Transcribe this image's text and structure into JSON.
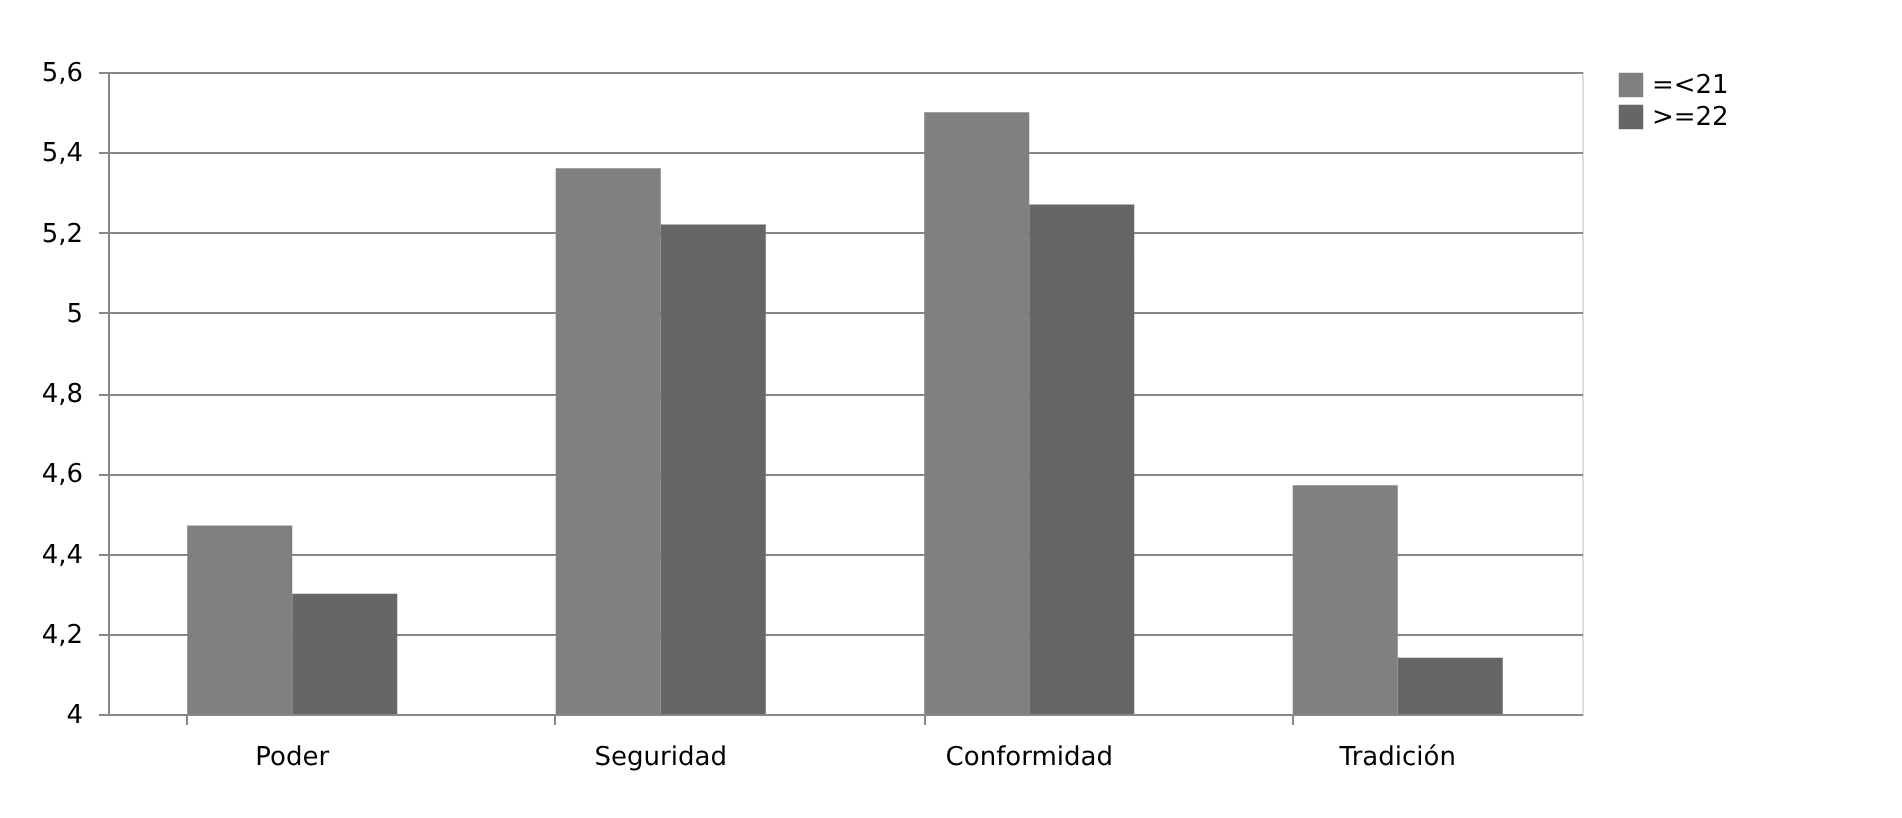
{
  "chart_data": {
    "type": "bar",
    "categories": [
      "Poder",
      "Seguridad",
      "Conformidad",
      "Tradición"
    ],
    "series": [
      {
        "name": "=<21",
        "color": "#808080",
        "values": [
          4.47,
          5.36,
          5.5,
          4.57
        ]
      },
      {
        "name": ">=22",
        "color": "#666666",
        "values": [
          4.3,
          5.22,
          5.27,
          4.14
        ]
      }
    ],
    "ylim": [
      4,
      5.6
    ],
    "yticks": [
      4,
      {
        "value": 4.2,
        "label": "4,2"
      },
      {
        "value": 4.4,
        "label": "4,4"
      },
      {
        "value": 4.6,
        "label": "4,6"
      },
      {
        "value": 4.8,
        "label": "4,8"
      },
      5,
      {
        "value": 5.2,
        "label": "5,2"
      },
      {
        "value": 5.4,
        "label": "5,4"
      },
      {
        "value": 5.6,
        "label": "5,6"
      }
    ],
    "grid": "y",
    "legend": "right"
  }
}
